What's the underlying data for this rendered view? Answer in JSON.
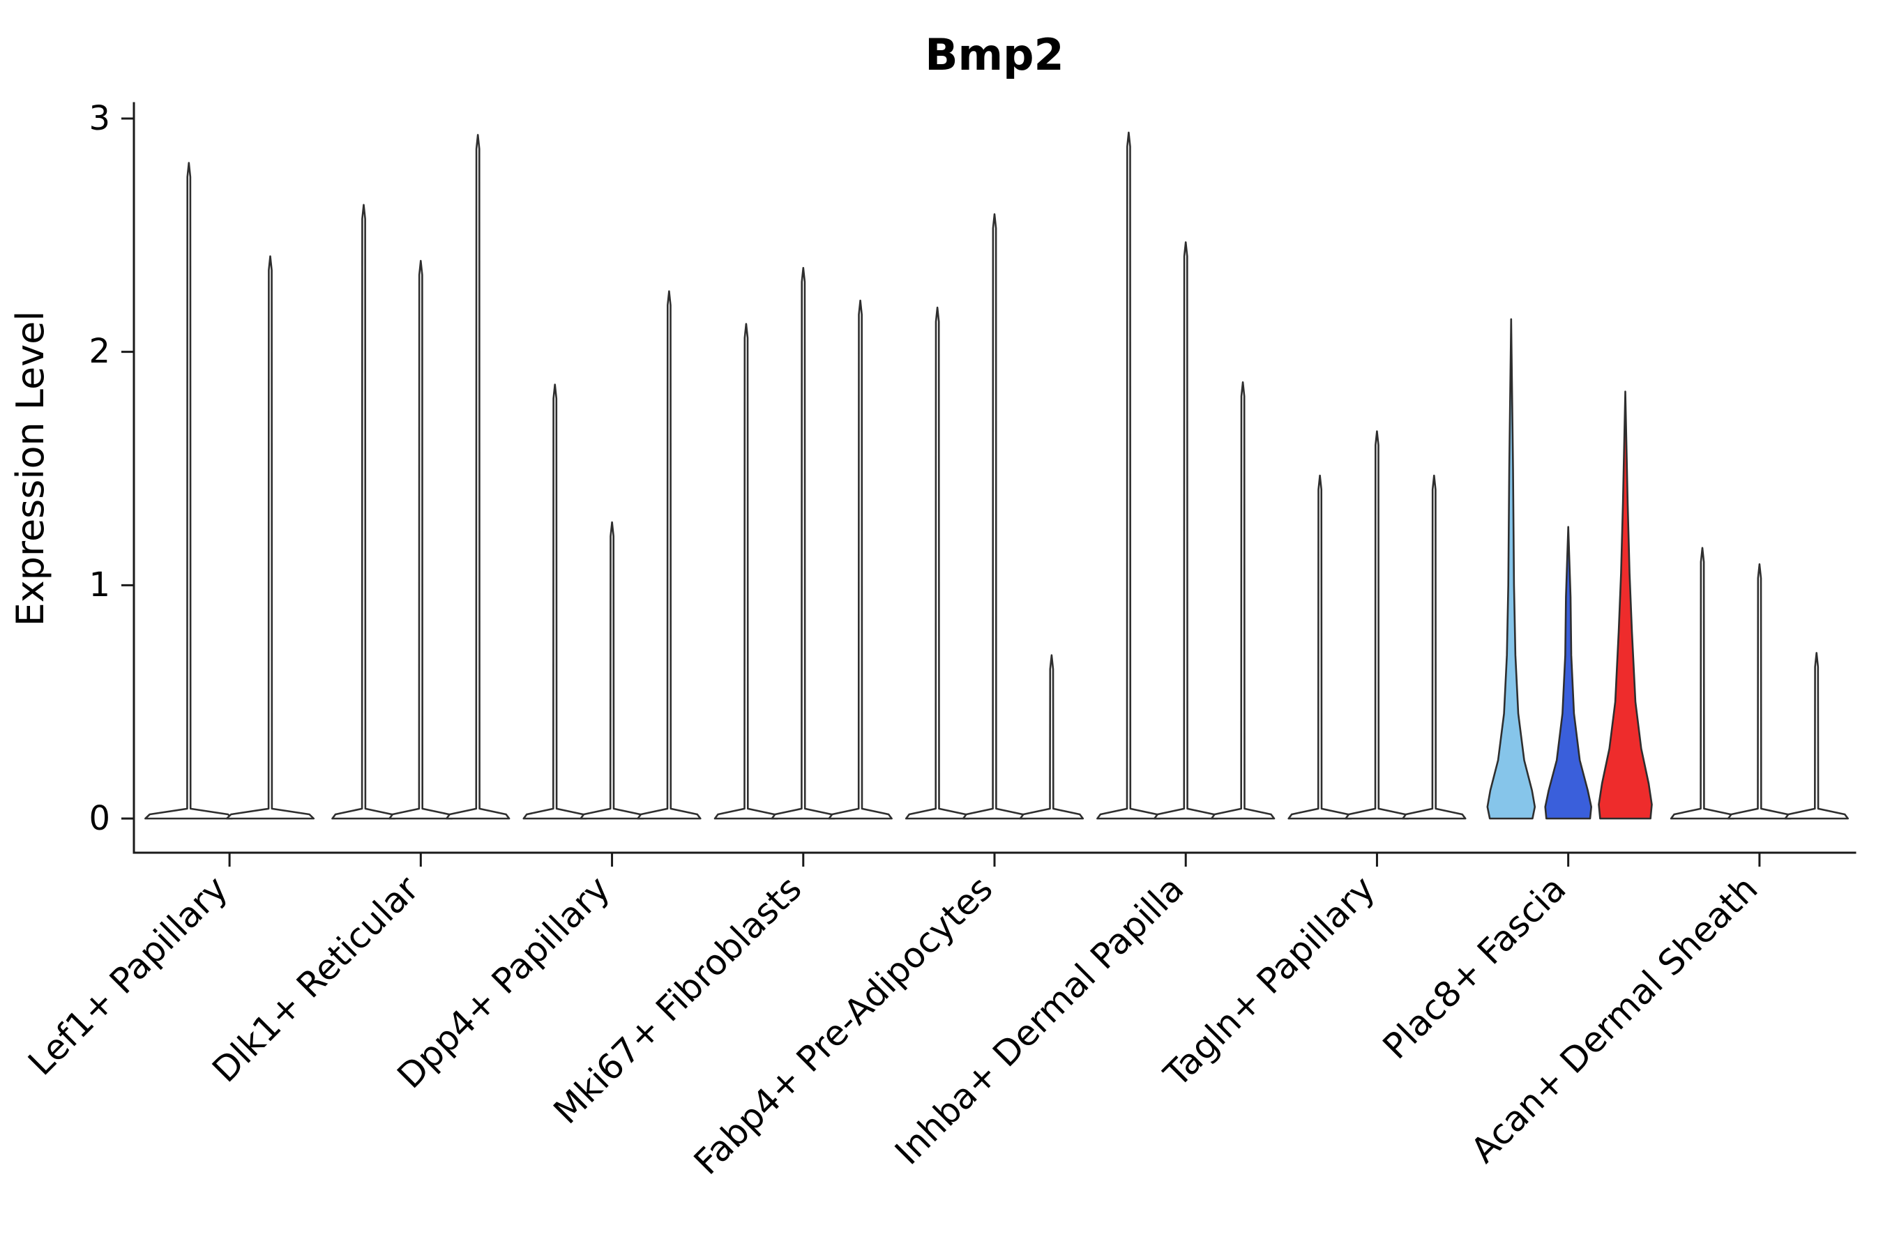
{
  "chart_data": {
    "type": "violin",
    "title": "Bmp2",
    "ylabel": "Expression Level",
    "ylim": [
      0,
      3
    ],
    "yticks": [
      "0",
      "1",
      "2",
      "3"
    ],
    "legend": "none",
    "grid": false,
    "categories": [
      "Lef1+ Papillary",
      "Dlk1+ Reticular",
      "Dpp4+ Papillary",
      "Mki67+ Fibroblasts",
      "Fabp4+ Pre-Adipocytes",
      "Inhba+ Dermal Papilla",
      "Tagln+ Papillary",
      "Plac8+ Fascia",
      "Acan+ Dermal Sheath"
    ],
    "edge_color": "#2E2E2E",
    "default_fill": "#FFFFFF",
    "split_colors": [
      "#86C5EA",
      "#3A5FDB",
      "#EE2C2C"
    ],
    "groups": [
      {
        "category": "Lef1+ Papillary",
        "violins": [
          {
            "max": 2.81
          },
          {
            "max": 2.41
          }
        ]
      },
      {
        "category": "Dlk1+ Reticular",
        "violins": [
          {
            "max": 2.63
          },
          {
            "max": 2.39
          },
          {
            "max": 2.93
          }
        ]
      },
      {
        "category": "Dpp4+ Papillary",
        "violins": [
          {
            "max": 1.86
          },
          {
            "max": 1.27
          },
          {
            "max": 2.26
          }
        ]
      },
      {
        "category": "Mki67+ Fibroblasts",
        "violins": [
          {
            "max": 2.12
          },
          {
            "max": 2.36
          },
          {
            "max": 2.22
          }
        ]
      },
      {
        "category": "Fabp4+ Pre-Adipocytes",
        "violins": [
          {
            "max": 2.19
          },
          {
            "max": 2.59
          },
          {
            "max": 0.7
          }
        ]
      },
      {
        "category": "Inhba+ Dermal Papilla",
        "violins": [
          {
            "max": 2.94
          },
          {
            "max": 2.47
          },
          {
            "max": 1.87
          }
        ]
      },
      {
        "category": "Tagln+ Papillary",
        "violins": [
          {
            "max": 1.47
          },
          {
            "max": 1.66
          },
          {
            "max": 1.47
          }
        ]
      },
      {
        "category": "Plac8+ Fascia",
        "violins": [
          {
            "max": 2.14,
            "fill": "#86C5EA",
            "shape": "violin",
            "hw": 34,
            "density": [
              [
                0,
                0.9
              ],
              [
                0.05,
                1.0
              ],
              [
                0.12,
                0.88
              ],
              [
                0.25,
                0.55
              ],
              [
                0.45,
                0.3
              ],
              [
                0.7,
                0.18
              ],
              [
                1.0,
                0.12
              ],
              [
                1.5,
                0.08
              ],
              [
                2.14,
                0
              ]
            ]
          },
          {
            "max": 1.25,
            "fill": "#3A5FDB",
            "shape": "violin",
            "hw": 33,
            "density": [
              [
                0,
                0.95
              ],
              [
                0.05,
                1.0
              ],
              [
                0.12,
                0.85
              ],
              [
                0.25,
                0.5
              ],
              [
                0.45,
                0.25
              ],
              [
                0.7,
                0.13
              ],
              [
                0.95,
                0.1
              ],
              [
                1.25,
                0
              ]
            ]
          },
          {
            "max": 1.83,
            "fill": "#EE2C2C",
            "shape": "violin",
            "hw": 38,
            "density": [
              [
                0,
                0.95
              ],
              [
                0.06,
                1.0
              ],
              [
                0.15,
                0.88
              ],
              [
                0.3,
                0.6
              ],
              [
                0.5,
                0.38
              ],
              [
                0.8,
                0.25
              ],
              [
                1.05,
                0.16
              ],
              [
                1.35,
                0.09
              ],
              [
                1.83,
                0
              ]
            ]
          }
        ]
      },
      {
        "category": "Acan+ Dermal Sheath",
        "violins": [
          {
            "max": 1.16
          },
          {
            "max": 1.09
          },
          {
            "max": 0.71
          }
        ]
      }
    ]
  }
}
